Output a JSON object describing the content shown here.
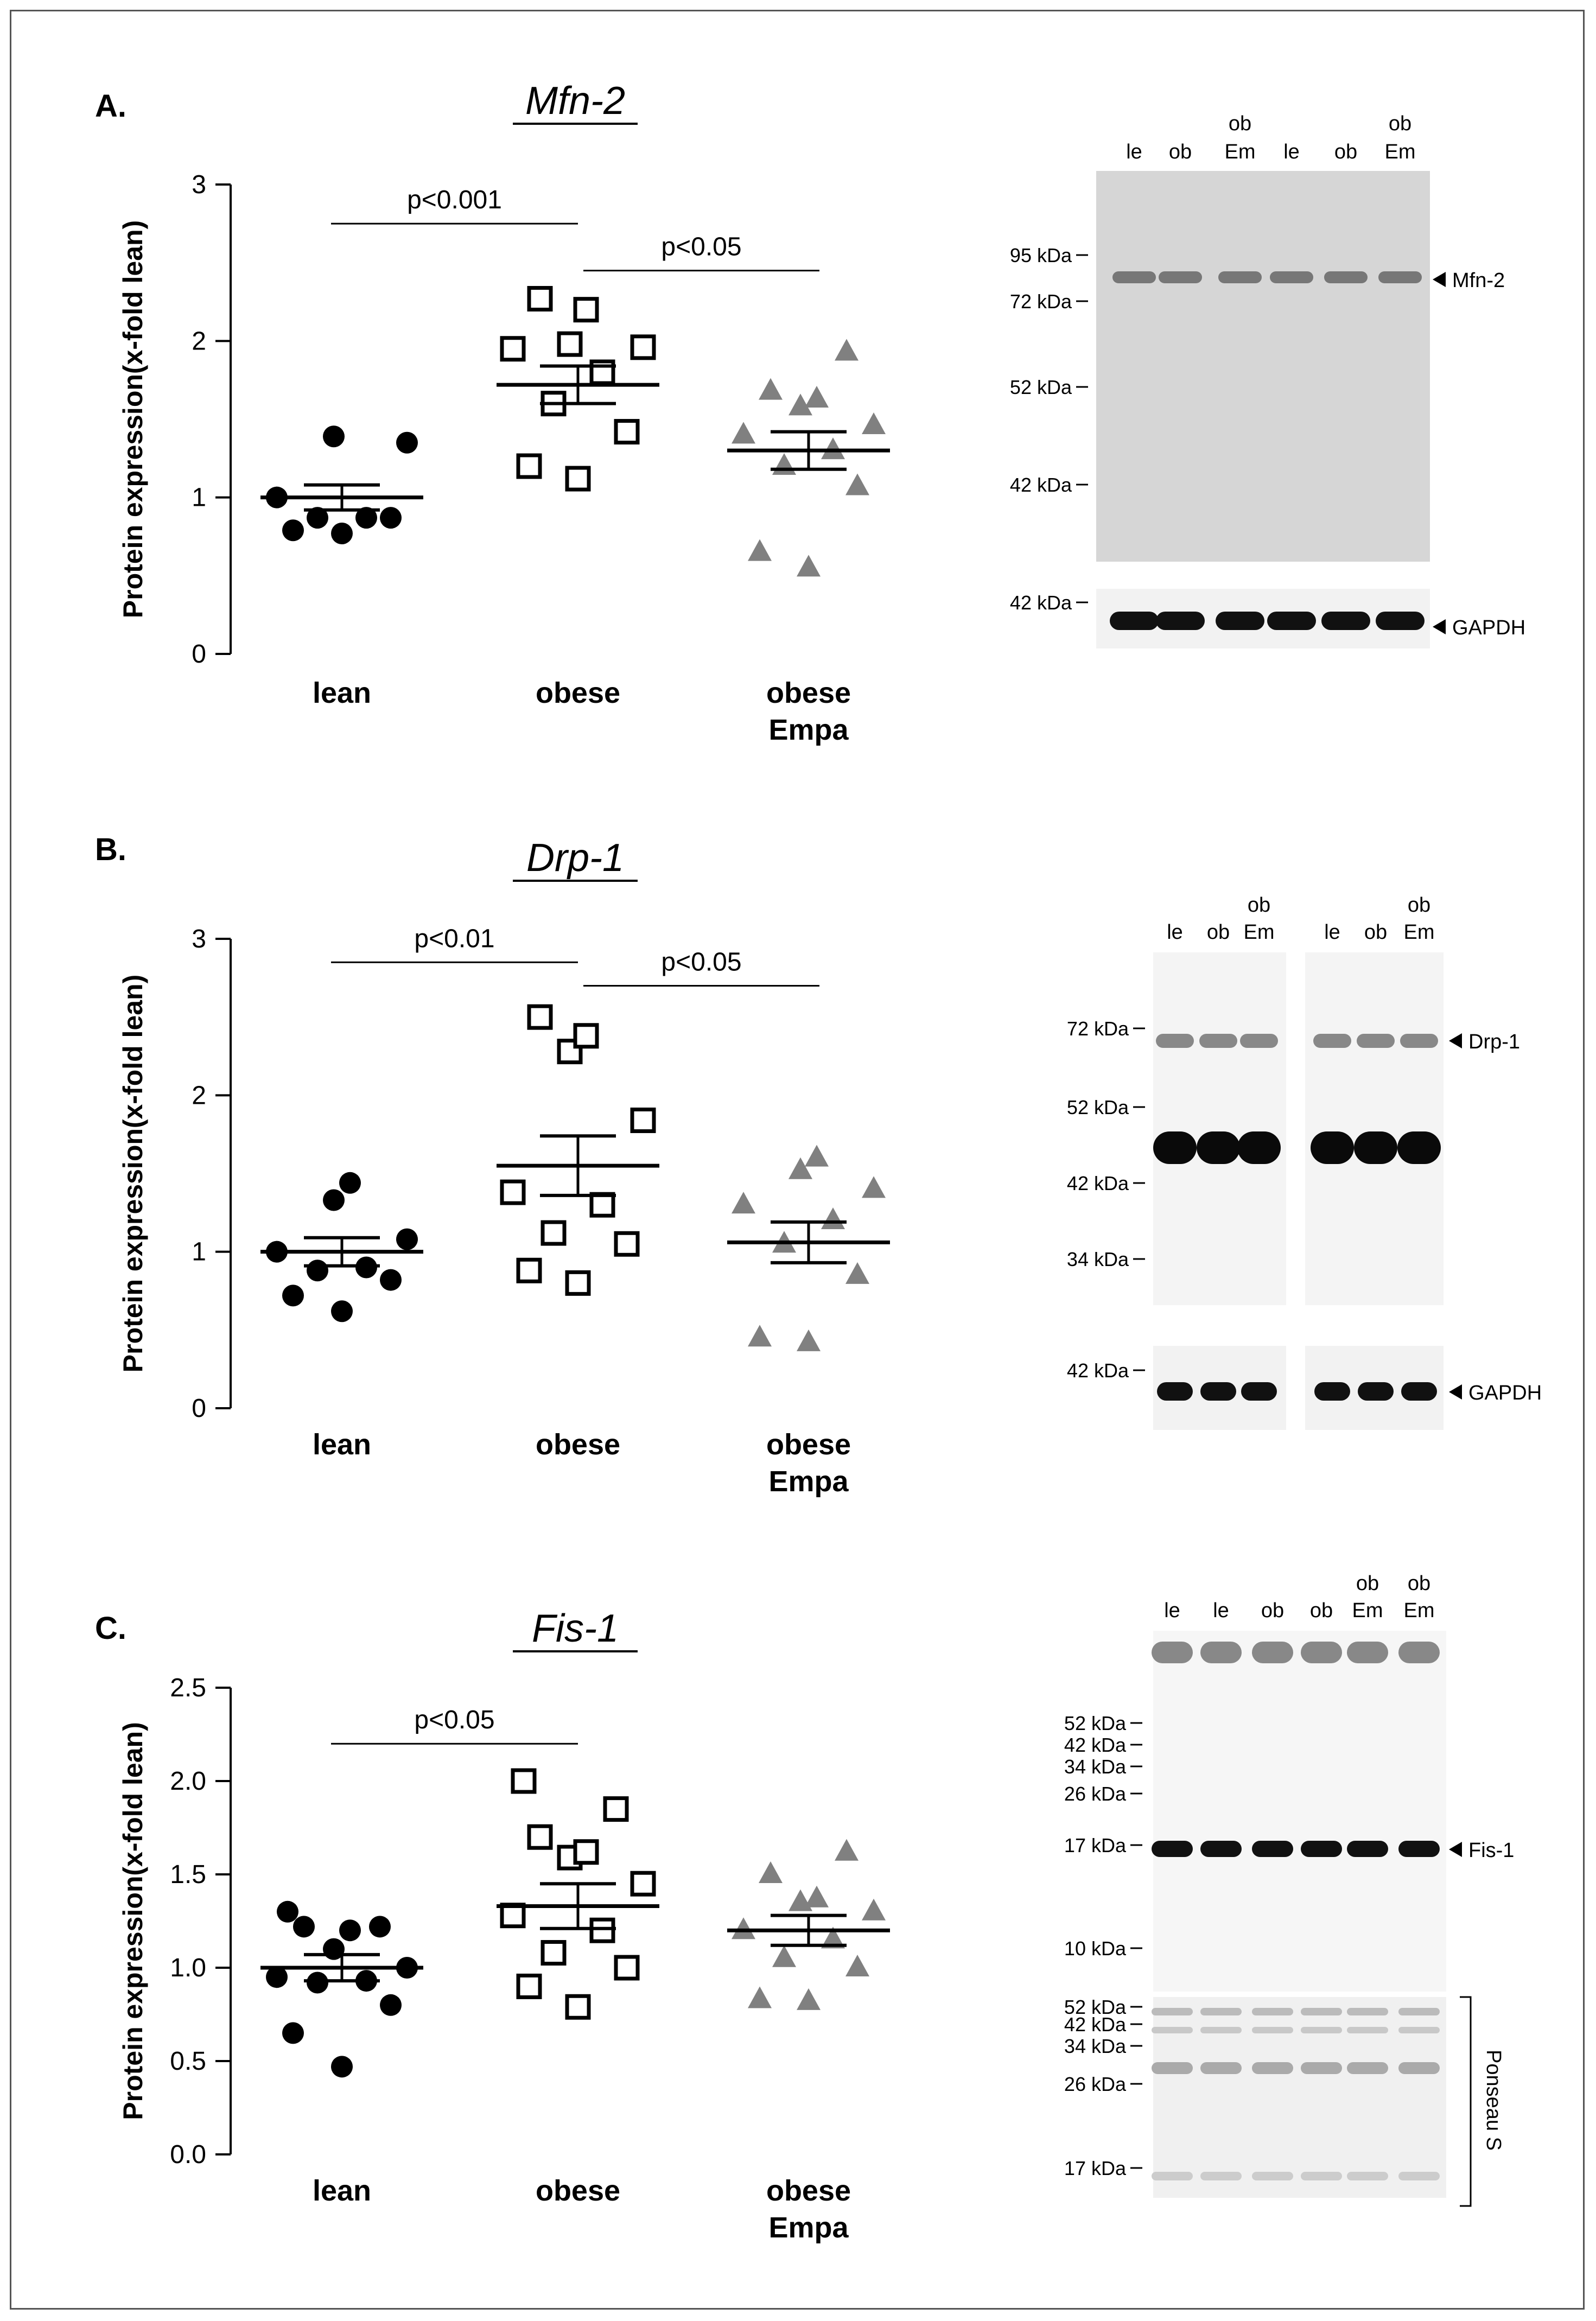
{
  "chart_data": [
    {
      "type": "scatter",
      "panel": "A.",
      "title": "Mfn-2",
      "ylabel": "Protein expression(x-fold lean)",
      "ylim": [
        0,
        3
      ],
      "yticks": [
        "0",
        "1",
        "2",
        "3"
      ],
      "categories": [
        "lean",
        "obese",
        "obese\nEmpa"
      ],
      "category_labels": [
        [
          "lean"
        ],
        [
          "obese"
        ],
        [
          "obese",
          "Empa"
        ]
      ],
      "series": [
        {
          "group": "lean",
          "marker": "filled-circle",
          "color": "#000000",
          "values": [
            0.77,
            0.79,
            0.87,
            0.87,
            0.87,
            1.0,
            1.35,
            1.39
          ],
          "mean": 1.0,
          "sem": 0.08
        },
        {
          "group": "obese",
          "marker": "open-square",
          "color": "#000000",
          "values": [
            1.12,
            1.2,
            1.42,
            1.6,
            1.8,
            1.95,
            1.96,
            1.98,
            2.2,
            2.27
          ],
          "mean": 1.72,
          "sem": 0.12
        },
        {
          "group": "obese Empa",
          "marker": "filled-triangle",
          "color": "#808080",
          "values": [
            0.55,
            0.65,
            1.07,
            1.2,
            1.3,
            1.4,
            1.46,
            1.58,
            1.63,
            1.68,
            1.93
          ],
          "mean": 1.3,
          "sem": 0.12
        }
      ],
      "comparisons": [
        {
          "from": 0,
          "to": 1,
          "label": "p<0.001",
          "y": 2.75
        },
        {
          "from": 1,
          "to": 2,
          "label": "p<0.05",
          "y": 2.45
        }
      ]
    },
    {
      "type": "scatter",
      "panel": "B.",
      "title": "Drp-1",
      "ylabel": "Protein expression(x-fold lean)",
      "ylim": [
        0,
        3
      ],
      "yticks": [
        "0",
        "1",
        "2",
        "3"
      ],
      "categories": [
        "lean",
        "obese",
        "obese\nEmpa"
      ],
      "category_labels": [
        [
          "lean"
        ],
        [
          "obese"
        ],
        [
          "obese",
          "Empa"
        ]
      ],
      "series": [
        {
          "group": "lean",
          "marker": "filled-circle",
          "color": "#000000",
          "values": [
            0.62,
            0.72,
            0.82,
            0.88,
            0.9,
            1.0,
            1.08,
            1.33,
            1.44
          ],
          "mean": 1.0,
          "sem": 0.09
        },
        {
          "group": "obese",
          "marker": "open-square",
          "color": "#000000",
          "values": [
            0.8,
            0.88,
            1.05,
            1.12,
            1.3,
            1.38,
            1.84,
            2.28,
            2.38,
            2.5
          ],
          "mean": 1.55,
          "sem": 0.19
        },
        {
          "group": "obese Empa",
          "marker": "filled-triangle",
          "color": "#808080",
          "values": [
            0.42,
            0.45,
            0.85,
            1.05,
            1.2,
            1.3,
            1.4,
            1.52,
            1.6
          ],
          "mean": 1.06,
          "sem": 0.13
        }
      ],
      "comparisons": [
        {
          "from": 0,
          "to": 1,
          "label": "p<0.01",
          "y": 2.85
        },
        {
          "from": 1,
          "to": 2,
          "label": "p<0.05",
          "y": 2.7
        }
      ]
    },
    {
      "type": "scatter",
      "panel": "C.",
      "title": "Fis-1",
      "ylabel": "Protein expression(x-fold lean)",
      "ylim": [
        0,
        2.5
      ],
      "yticks": [
        "0.0",
        "0.5",
        "1.0",
        "1.5",
        "2.0",
        "2.5"
      ],
      "categories": [
        "lean",
        "obese",
        "obese\nEmpa"
      ],
      "category_labels": [
        [
          "lean"
        ],
        [
          "obese"
        ],
        [
          "obese",
          "Empa"
        ]
      ],
      "series": [
        {
          "group": "lean",
          "marker": "filled-circle",
          "color": "#000000",
          "values": [
            0.47,
            0.65,
            0.8,
            0.92,
            0.93,
            0.95,
            1.0,
            1.1,
            1.2,
            1.22,
            1.22,
            1.3
          ],
          "mean": 1.0,
          "sem": 0.07
        },
        {
          "group": "obese",
          "marker": "open-square",
          "color": "#000000",
          "values": [
            0.79,
            0.9,
            1.0,
            1.08,
            1.2,
            1.28,
            1.45,
            1.59,
            1.62,
            1.7,
            1.85,
            2.0
          ],
          "mean": 1.33,
          "sem": 0.12
        },
        {
          "group": "obese Empa",
          "marker": "filled-triangle",
          "color": "#808080",
          "values": [
            0.82,
            0.83,
            1.0,
            1.05,
            1.15,
            1.2,
            1.3,
            1.35,
            1.37,
            1.5,
            1.62
          ],
          "mean": 1.2,
          "sem": 0.08
        }
      ],
      "comparisons": [
        {
          "from": 0,
          "to": 1,
          "label": "p<0.05",
          "y": 2.2
        }
      ]
    }
  ],
  "blots": [
    {
      "lanes": [
        {
          "top": "",
          "bottom": "le"
        },
        {
          "top": "",
          "bottom": "ob"
        },
        {
          "top": "ob",
          "bottom": "Em"
        },
        {
          "top": "",
          "bottom": "le"
        },
        {
          "top": "",
          "bottom": "ob"
        },
        {
          "top": "ob",
          "bottom": "Em"
        }
      ],
      "markers": [
        "95 kDa",
        "72 kDa",
        "52 kDa",
        "42 kDa"
      ],
      "loading_marker": "42 kDa",
      "target_label": "Mfn-2",
      "loading_label": "GAPDH"
    },
    {
      "lanes": [
        {
          "top": "",
          "bottom": "le"
        },
        {
          "top": "",
          "bottom": "ob"
        },
        {
          "top": "ob",
          "bottom": "Em"
        },
        {
          "top": "",
          "bottom": "le"
        },
        {
          "top": "",
          "bottom": "ob"
        },
        {
          "top": "ob",
          "bottom": "Em"
        }
      ],
      "markers": [
        "72 kDa",
        "52 kDa",
        "42 kDa",
        "34 kDa"
      ],
      "loading_marker": "42 kDa",
      "target_label": "Drp-1",
      "loading_label": "GAPDH"
    },
    {
      "lanes": [
        {
          "top": "",
          "bottom": "le"
        },
        {
          "top": "",
          "bottom": "le"
        },
        {
          "top": "",
          "bottom": "ob"
        },
        {
          "top": "",
          "bottom": "ob"
        },
        {
          "top": "ob",
          "bottom": "Em"
        },
        {
          "top": "ob",
          "bottom": "Em"
        }
      ],
      "markers": [
        "52 kDa",
        "42 kDa",
        "34 kDa",
        "26 kDa",
        "17 kDa",
        "10 kDa"
      ],
      "ponceau_markers": [
        "52 kDa",
        "42 kDa",
        "34 kDa",
        "26 kDa",
        "17 kDa"
      ],
      "target_label": "Fis-1",
      "loading_label": "Ponseau S"
    }
  ]
}
